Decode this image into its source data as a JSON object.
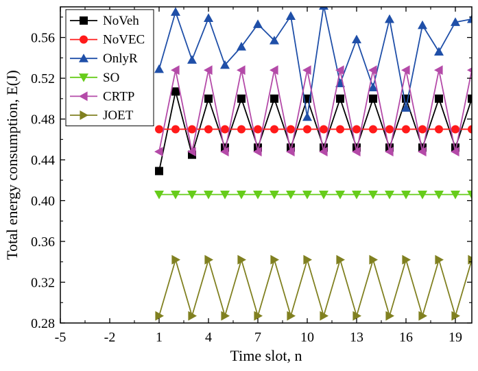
{
  "chart_data": {
    "type": "line",
    "xlabel": "Time slot, n",
    "ylabel": "Total energy consumption, E(J)",
    "xlim": [
      -5,
      20
    ],
    "ylim": [
      0.28,
      0.59
    ],
    "xticks": [
      -5,
      -2,
      1,
      4,
      7,
      10,
      13,
      16,
      19
    ],
    "xtick_labels": [
      "-5",
      "-2",
      "1",
      "4",
      "7",
      "10",
      "13",
      "16",
      "19"
    ],
    "yticks": [
      0.28,
      0.32,
      0.36,
      0.4,
      0.44,
      0.48,
      0.52,
      0.56
    ],
    "ytick_labels": [
      "0.28",
      "0.32",
      "0.36",
      "0.40",
      "0.44",
      "0.48",
      "0.52",
      "0.56"
    ],
    "grid": false,
    "legend_position": "top-left",
    "x": [
      1,
      2,
      3,
      4,
      5,
      6,
      7,
      8,
      9,
      10,
      11,
      12,
      13,
      14,
      15,
      16,
      17,
      18,
      19,
      20
    ],
    "series": [
      {
        "name": "NoVeh",
        "color": "#000000",
        "marker": "square",
        "values": [
          0.429,
          0.507,
          0.445,
          0.5,
          0.452,
          0.5,
          0.452,
          0.5,
          0.452,
          0.5,
          0.452,
          0.5,
          0.452,
          0.5,
          0.452,
          0.5,
          0.452,
          0.5,
          0.452,
          0.5
        ]
      },
      {
        "name": "NoVEC",
        "color": "#ff1a1a",
        "marker": "circle",
        "values": [
          0.47,
          0.47,
          0.47,
          0.47,
          0.47,
          0.47,
          0.47,
          0.47,
          0.47,
          0.47,
          0.47,
          0.47,
          0.47,
          0.47,
          0.47,
          0.47,
          0.47,
          0.47,
          0.47,
          0.47
        ]
      },
      {
        "name": "OnlyR",
        "color": "#1f4fa8",
        "marker": "triangle-up",
        "values": [
          0.529,
          0.585,
          0.538,
          0.579,
          0.533,
          0.551,
          0.573,
          0.557,
          0.581,
          0.482,
          0.591,
          0.515,
          0.558,
          0.511,
          0.578,
          0.491,
          0.572,
          0.546,
          0.575,
          0.578
        ]
      },
      {
        "name": "SO",
        "color": "#66cc1a",
        "marker": "triangle-down",
        "values": [
          0.406,
          0.406,
          0.406,
          0.406,
          0.406,
          0.406,
          0.406,
          0.406,
          0.406,
          0.406,
          0.406,
          0.406,
          0.406,
          0.406,
          0.406,
          0.406,
          0.406,
          0.406,
          0.406,
          0.406
        ]
      },
      {
        "name": "CRTP",
        "color": "#b44aa8",
        "marker": "triangle-left",
        "values": [
          0.448,
          0.528,
          0.448,
          0.528,
          0.448,
          0.528,
          0.448,
          0.528,
          0.448,
          0.528,
          0.448,
          0.528,
          0.448,
          0.528,
          0.448,
          0.528,
          0.448,
          0.528,
          0.448,
          0.528
        ]
      },
      {
        "name": "JOET",
        "color": "#808020",
        "marker": "triangle-right",
        "values": [
          0.287,
          0.342,
          0.287,
          0.342,
          0.287,
          0.342,
          0.287,
          0.342,
          0.287,
          0.342,
          0.287,
          0.342,
          0.287,
          0.342,
          0.287,
          0.342,
          0.287,
          0.342,
          0.287,
          0.342
        ]
      }
    ]
  }
}
